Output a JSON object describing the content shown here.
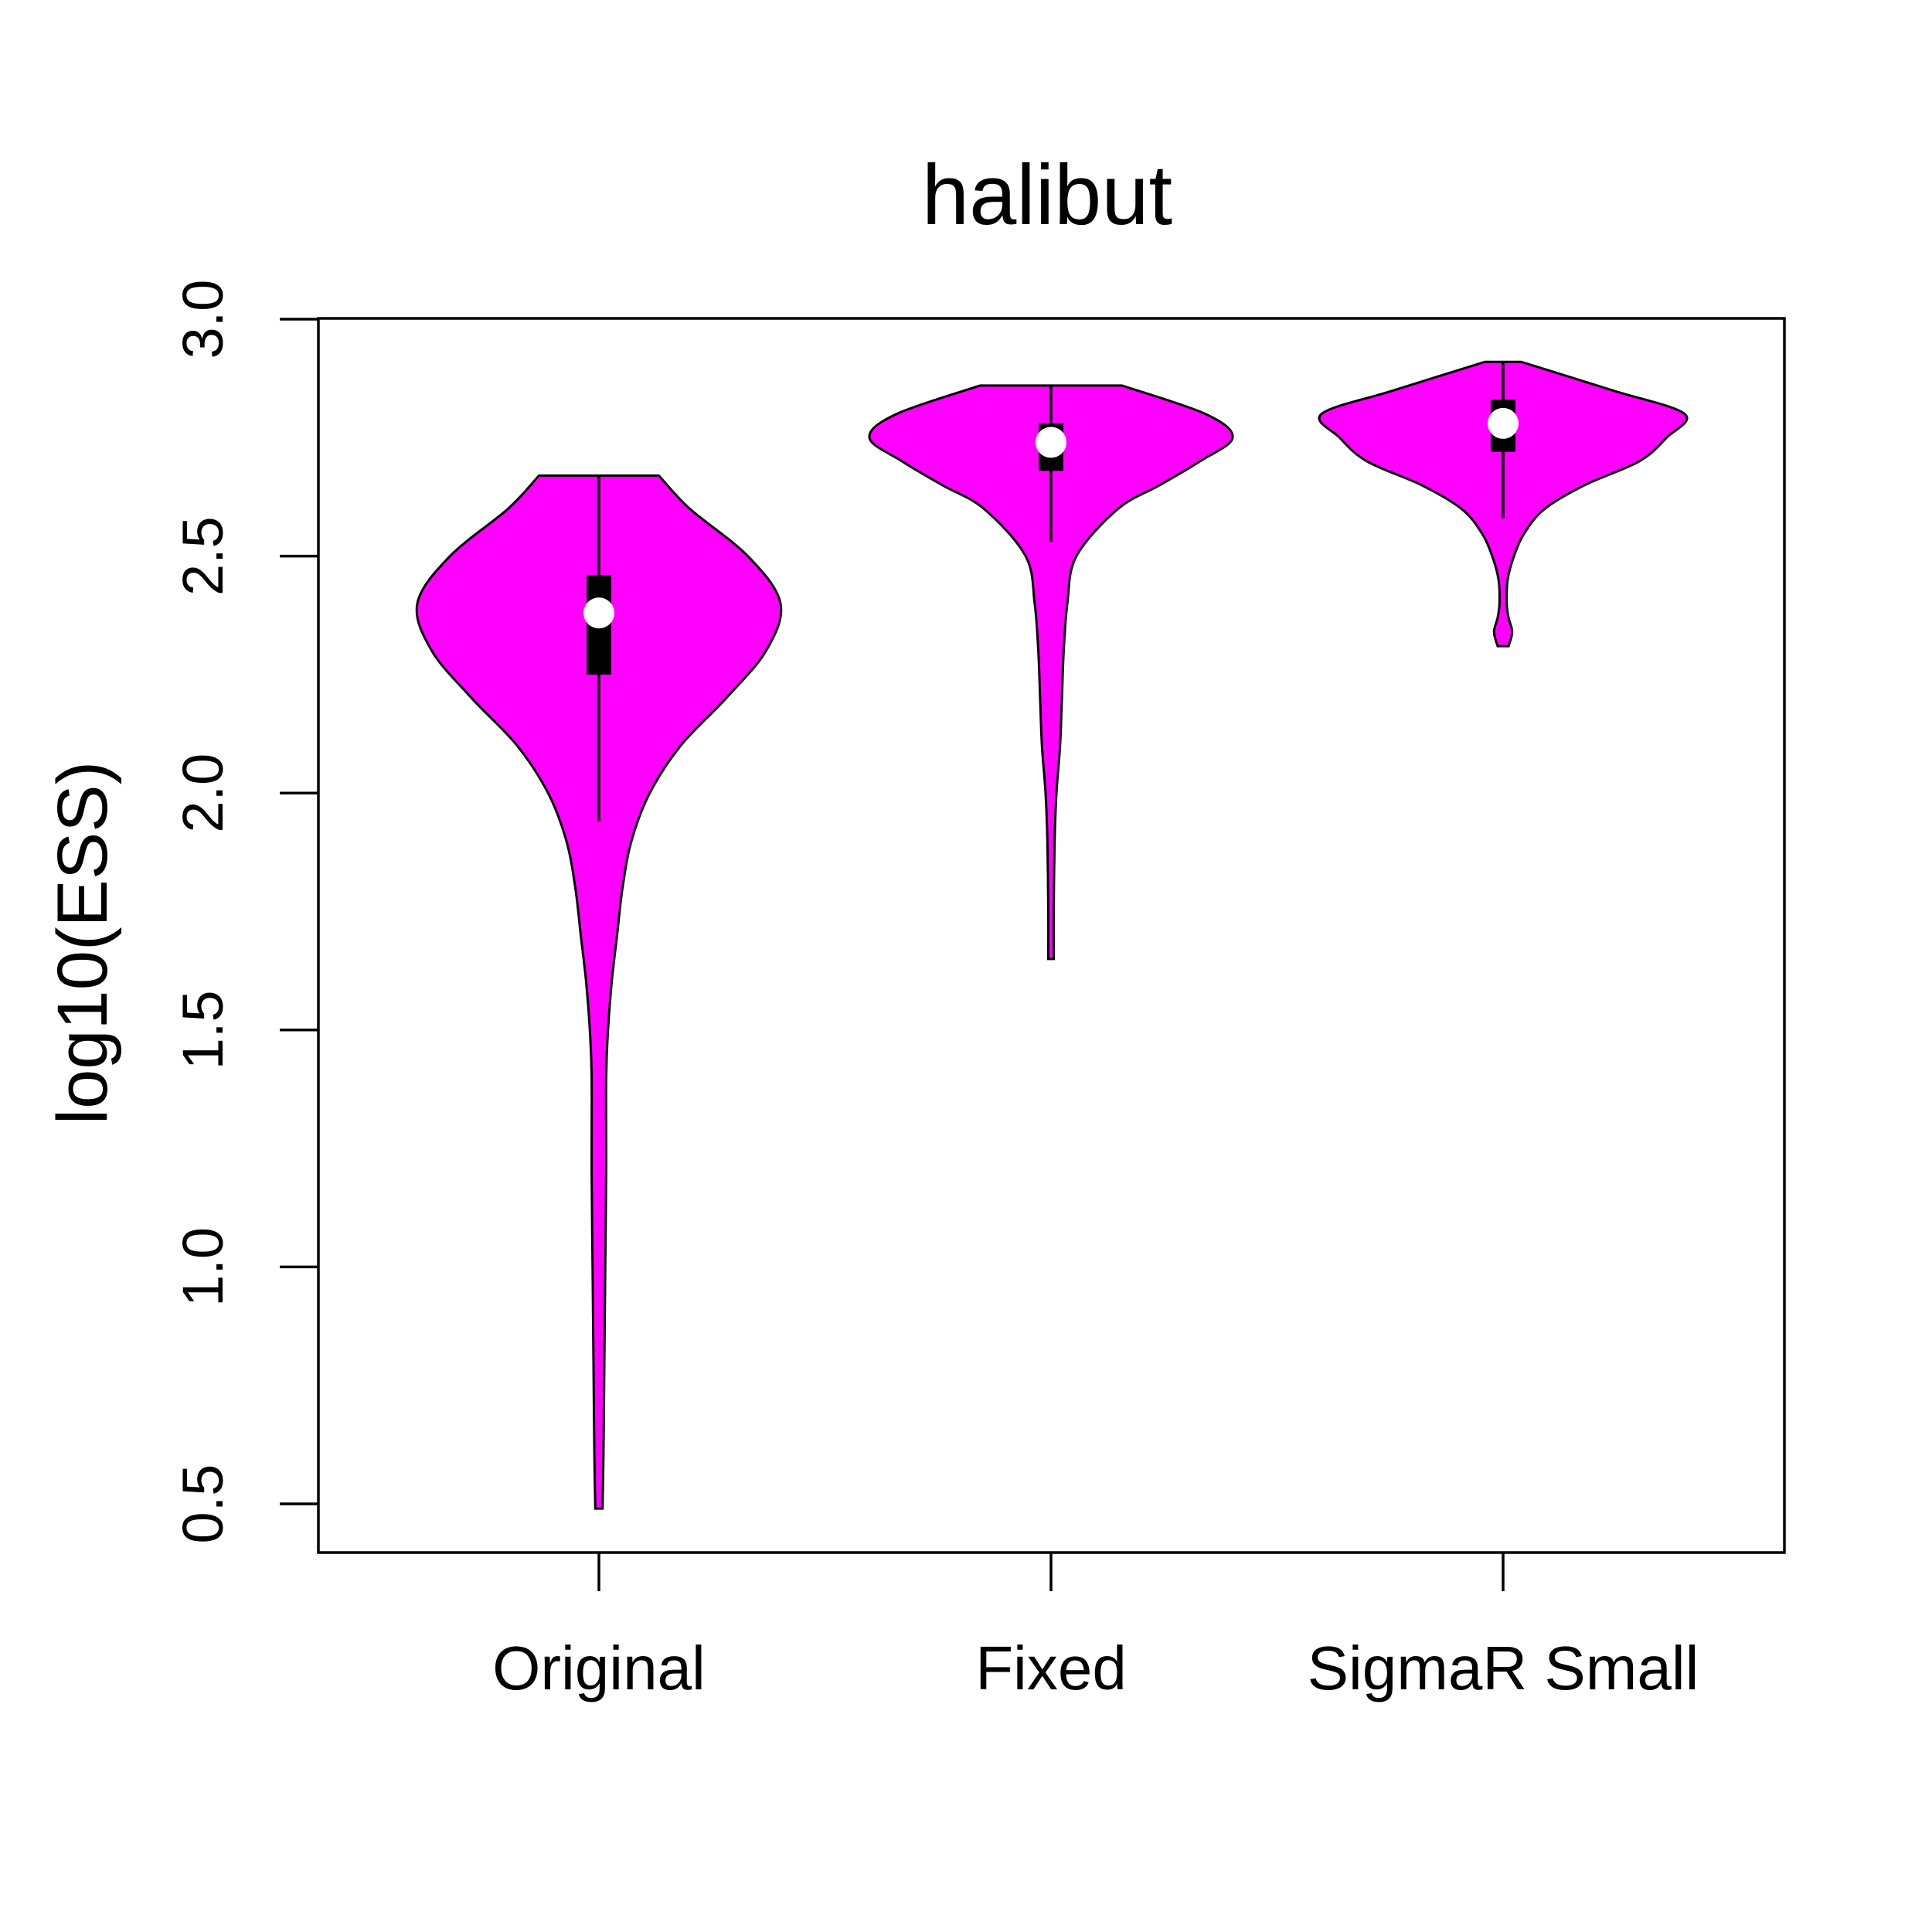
{
  "chart_data": {
    "type": "violin",
    "title": "halibut",
    "xlabel": "",
    "ylabel": "log10(ESS)",
    "ylim": [
      0.4,
      3.0
    ],
    "yticks": [
      0.5,
      1.0,
      1.5,
      2.0,
      2.5,
      3.0
    ],
    "ytick_labels": [
      "0.5",
      "1.0",
      "1.5",
      "2.0",
      "2.5",
      "3.0"
    ],
    "categories": [
      "Original",
      "Fixed",
      "SigmaR Small"
    ],
    "fill_color": "#ff00ff",
    "grid": false,
    "legend": "none",
    "series": [
      {
        "min": 0.49,
        "max": 2.67,
        "q1": 2.25,
        "q3": 2.46,
        "median": 2.38,
        "whisker_low": 1.94,
        "whisker_high": 2.67,
        "density": [
          [
            0.49,
            0.02
          ],
          [
            0.6,
            0.025
          ],
          [
            0.8,
            0.03
          ],
          [
            1.0,
            0.035
          ],
          [
            1.2,
            0.04
          ],
          [
            1.4,
            0.04
          ],
          [
            1.5,
            0.05
          ],
          [
            1.6,
            0.07
          ],
          [
            1.7,
            0.1
          ],
          [
            1.8,
            0.13
          ],
          [
            1.9,
            0.18
          ],
          [
            2.0,
            0.28
          ],
          [
            2.1,
            0.45
          ],
          [
            2.2,
            0.7
          ],
          [
            2.3,
            0.92
          ],
          [
            2.4,
            1.0
          ],
          [
            2.5,
            0.82
          ],
          [
            2.6,
            0.5
          ],
          [
            2.67,
            0.33
          ]
        ]
      },
      {
        "min": 1.65,
        "max": 2.86,
        "q1": 2.68,
        "q3": 2.78,
        "median": 2.74,
        "whisker_low": 2.53,
        "whisker_high": 2.86,
        "density": [
          [
            1.65,
            0.015
          ],
          [
            1.75,
            0.015
          ],
          [
            1.9,
            0.02
          ],
          [
            2.0,
            0.03
          ],
          [
            2.1,
            0.05
          ],
          [
            2.2,
            0.06
          ],
          [
            2.3,
            0.07
          ],
          [
            2.4,
            0.09
          ],
          [
            2.5,
            0.14
          ],
          [
            2.6,
            0.37
          ],
          [
            2.65,
            0.6
          ],
          [
            2.7,
            0.82
          ],
          [
            2.75,
            1.0
          ],
          [
            2.8,
            0.85
          ],
          [
            2.86,
            0.39
          ]
        ]
      },
      {
        "min": 2.31,
        "max": 2.91,
        "q1": 2.72,
        "q3": 2.83,
        "median": 2.78,
        "whisker_low": 2.58,
        "whisker_high": 2.91,
        "density": [
          [
            2.31,
            0.03
          ],
          [
            2.34,
            0.05
          ],
          [
            2.37,
            0.03
          ],
          [
            2.4,
            0.02
          ],
          [
            2.45,
            0.025
          ],
          [
            2.5,
            0.06
          ],
          [
            2.55,
            0.12
          ],
          [
            2.6,
            0.23
          ],
          [
            2.65,
            0.45
          ],
          [
            2.7,
            0.75
          ],
          [
            2.75,
            0.9
          ],
          [
            2.8,
            1.0
          ],
          [
            2.85,
            0.6
          ],
          [
            2.91,
            0.1
          ]
        ]
      }
    ]
  }
}
